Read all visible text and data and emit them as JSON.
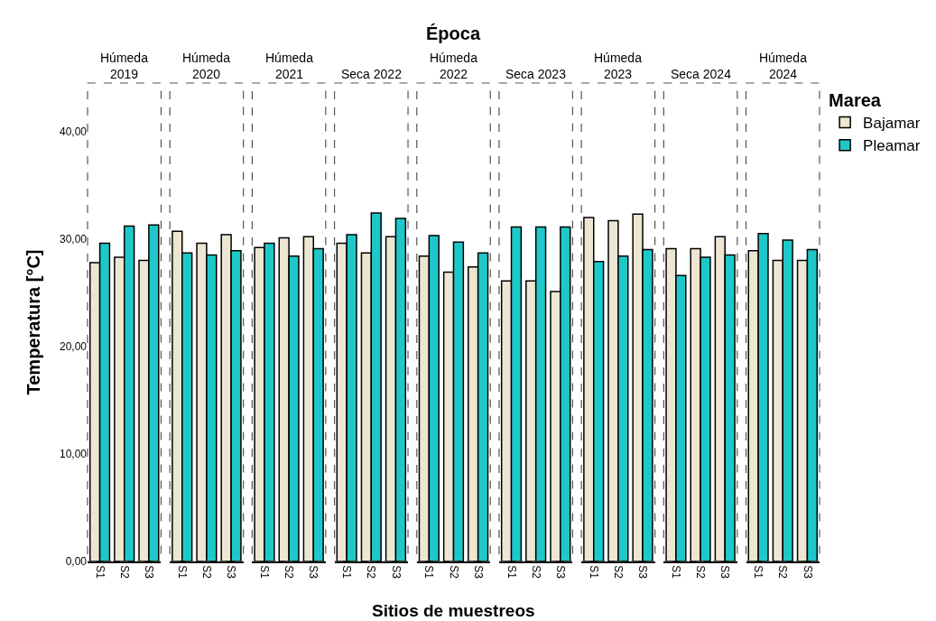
{
  "chart_data": [
    {
      "type": "bar",
      "subtitle": "Húmeda\n2019",
      "ylabel": "Temperatura [°C]",
      "legend_title": "Marea",
      "legend": "top right",
      "categories": [
        "S1",
        "S2",
        "S3"
      ],
      "ylim": [
        0,
        44.5
      ],
      "yticks": [
        {
          "value": 0,
          "label": "0,00"
        },
        {
          "value": 10,
          "label": "10,00"
        },
        {
          "value": 20,
          "label": "20,00"
        },
        {
          "value": 30,
          "label": "30,00"
        },
        {
          "value": 40,
          "label": "40,00"
        }
      ],
      "series": [
        {
          "name": "Bajamar",
          "color": "#ede6d2",
          "values": [
            27.8,
            28.3,
            28.0
          ]
        },
        {
          "name": "Pleamar",
          "color": "#1fc8c8",
          "values": [
            29.6,
            31.2,
            31.3
          ]
        }
      ]
    },
    {
      "type": "bar",
      "subtitle": "Húmeda\n2020",
      "categories": [
        "S1",
        "S2",
        "S3"
      ],
      "ylim": [
        0,
        44.5
      ],
      "tick_labels": "x",
      "series": [
        {
          "color": "#ede6d2",
          "values": [
            30.7,
            29.6,
            30.4
          ]
        },
        {
          "color": "#1fc8c8",
          "values": [
            28.7,
            28.5,
            28.9
          ]
        }
      ]
    },
    {
      "type": "bar",
      "subtitle": "Húmeda\n2021",
      "categories": [
        "S1",
        "S2",
        "S3"
      ],
      "ylim": [
        0,
        44.5
      ],
      "tick_labels": "x",
      "series": [
        {
          "color": "#ede6d2",
          "values": [
            29.2,
            30.1,
            30.2
          ]
        },
        {
          "color": "#1fc8c8",
          "values": [
            29.6,
            28.4,
            29.1
          ]
        }
      ]
    },
    {
      "type": "bar",
      "subtitle": "Seca 2022",
      "categories": [
        "S1",
        "S2",
        "S3"
      ],
      "ylim": [
        0,
        44.5
      ],
      "tick_labels": "x",
      "series": [
        {
          "color": "#ede6d2",
          "values": [
            29.6,
            28.7,
            30.2
          ]
        },
        {
          "color": "#1fc8c8",
          "values": [
            30.4,
            32.4,
            31.9
          ]
        }
      ]
    },
    {
      "type": "bar",
      "title": "Época",
      "subtitle": "Húmeda\n2022",
      "xlabel": "Sitios de muestreos",
      "categories": [
        "S1",
        "S2",
        "S3"
      ],
      "ylim": [
        0,
        44.5
      ],
      "tick_labels": "x",
      "series": [
        {
          "color": "#ede6d2",
          "values": [
            28.4,
            26.9,
            27.4
          ]
        },
        {
          "color": "#1fc8c8",
          "values": [
            30.3,
            29.7,
            28.7
          ]
        }
      ]
    },
    {
      "type": "bar",
      "subtitle": "Seca 2023",
      "categories": [
        "S1",
        "S2",
        "S3"
      ],
      "ylim": [
        0,
        44.5
      ],
      "tick_labels": "x",
      "series": [
        {
          "color": "#ede6d2",
          "values": [
            26.1,
            26.1,
            25.1
          ]
        },
        {
          "color": "#1fc8c8",
          "values": [
            31.1,
            31.1,
            31.1
          ]
        }
      ]
    },
    {
      "type": "bar",
      "subtitle": "Húmeda\n2023",
      "categories": [
        "S1",
        "S2",
        "S3"
      ],
      "ylim": [
        0,
        44.5
      ],
      "tick_labels": "x",
      "series": [
        {
          "color": "#ede6d2",
          "values": [
            32.0,
            31.7,
            32.3
          ]
        },
        {
          "color": "#1fc8c8",
          "values": [
            27.9,
            28.4,
            29.0
          ]
        }
      ]
    },
    {
      "type": "bar",
      "subtitle": "Seca 2024",
      "categories": [
        "S1",
        "S2",
        "S3"
      ],
      "ylim": [
        0,
        44.5
      ],
      "tick_labels": "x",
      "series": [
        {
          "color": "#ede6d2",
          "values": [
            29.1,
            29.1,
            30.2
          ]
        },
        {
          "color": "#1fc8c8",
          "values": [
            26.6,
            28.3,
            28.5
          ]
        }
      ]
    },
    {
      "type": "bar",
      "subtitle": "Húmeda\n2024",
      "categories": [
        "S1",
        "S2",
        "S3"
      ],
      "ylim": [
        0,
        44.5
      ],
      "tick_labels": "x",
      "series": [
        {
          "color": "#ede6d2",
          "values": [
            28.9,
            28.0,
            28.0
          ]
        },
        {
          "color": "#1fc8c8",
          "values": [
            30.5,
            29.9,
            29.0
          ]
        }
      ]
    }
  ]
}
